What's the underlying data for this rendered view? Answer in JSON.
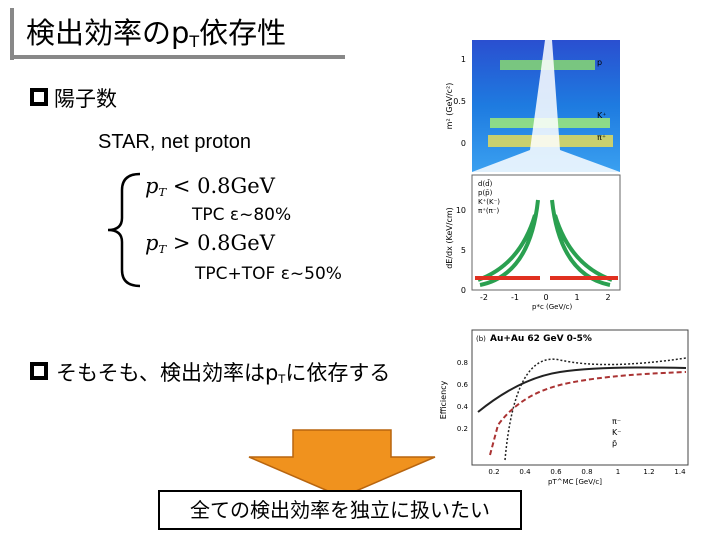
{
  "title": {
    "pre": "検出効率のp",
    "sub": "T",
    "post": "依存性"
  },
  "bullet1": "陽子数",
  "experiment": "STAR, net proton",
  "conditions": [
    {
      "var": "p",
      "sub": "T",
      "rel": "< 0.8GeV",
      "method": "TPC ε~80%"
    },
    {
      "var": "p",
      "sub": "T",
      "rel": "> 0.8GeV",
      "method": "TPC+TOF ε~50%"
    }
  ],
  "bullet2": {
    "pre": "そもそも、検出効率はp",
    "sub": "T",
    "post": "に依存する"
  },
  "conclusion": "全ての検出効率を独立に扱いたい",
  "figures": {
    "pid": {
      "top_ylabel": "m² (GeV/c²)",
      "top_yticks": [
        "1",
        "0.5",
        "0"
      ],
      "top_species": [
        "p",
        "K⁺",
        "π⁺"
      ],
      "bottom_ylabel": "dE/dx (KeV/cm)",
      "bottom_yticks": [
        "10",
        "5",
        "0"
      ],
      "legend": [
        "d(d̄)",
        "p(p̄)",
        "K⁺(K⁻)",
        "π⁺(π⁻)"
      ],
      "xticks": [
        "-2",
        "-1",
        "0",
        "1",
        "2"
      ],
      "xlabel": "p*c (GeV/c)"
    },
    "efficiency": {
      "panel": "(b)",
      "title": "Au+Au 62 GeV 0-5%",
      "ylabel": "Efficiency",
      "yticks": [
        "0.8",
        "0.6",
        "0.4",
        "0.2"
      ],
      "xticks": [
        "0.2",
        "0.4",
        "0.6",
        "0.8",
        "1",
        "1.2",
        "1.4"
      ],
      "xlabel": "pT^MC [GeV/c]",
      "legend": [
        "π⁻",
        "K⁻",
        "p̄"
      ]
    }
  }
}
